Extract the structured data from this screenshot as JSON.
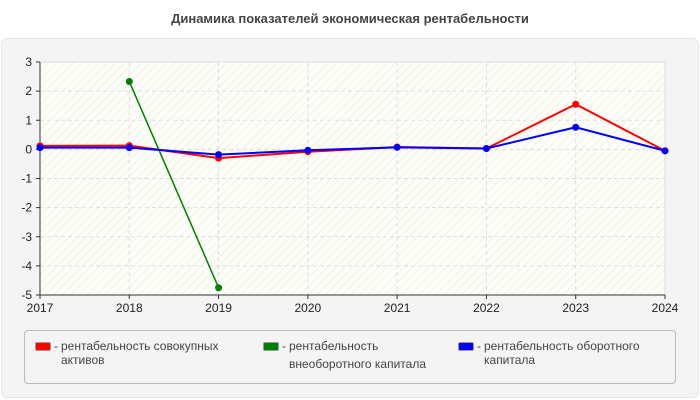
{
  "chart_data": {
    "type": "line",
    "title": "Динамика показателей экономическая рентабельности",
    "xlabel": "",
    "ylabel": "",
    "x": [
      "2017",
      "2018",
      "2019",
      "2020",
      "2021",
      "2022",
      "2023",
      "2024"
    ],
    "ylim": [
      -5,
      3
    ],
    "yticks": [
      "3",
      "2",
      "1",
      "0",
      "-1",
      "-2",
      "-3",
      "-4",
      "-5"
    ],
    "grid": true,
    "legend_position": "bottom",
    "series": [
      {
        "name": "рентабельность совокупных активов",
        "color": "#ff0000",
        "values": [
          0.12,
          0.13,
          -0.3,
          -0.08,
          0.08,
          0.03,
          1.55,
          -0.05
        ]
      },
      {
        "name": "рентабельность внеоборотного капитала",
        "color": "#008000",
        "values": [
          null,
          2.33,
          -4.75,
          null,
          null,
          null,
          null,
          null
        ]
      },
      {
        "name": "рентабельность оборотного капитала",
        "color": "#0000ff",
        "values": [
          0.06,
          0.06,
          -0.18,
          -0.03,
          0.07,
          0.03,
          0.76,
          -0.05
        ]
      }
    ]
  },
  "legend": {
    "items": [
      {
        "line1": "рентабельность совокупных",
        "line2": "активов"
      },
      {
        "line1": "рентабельность",
        "line2": "внеоборотного капитала"
      },
      {
        "line1": "рентабельность оборотного",
        "line2": "капитала"
      }
    ]
  }
}
